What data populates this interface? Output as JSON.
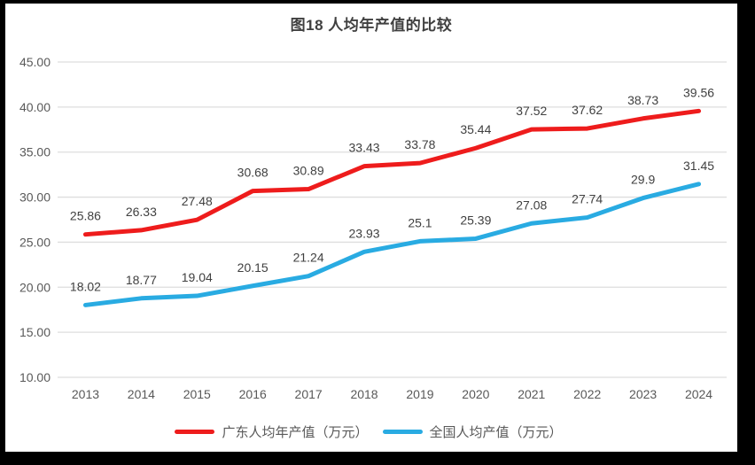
{
  "window": {
    "frame_color": "#000000",
    "canvas_color": "#ffffff"
  },
  "chart_data": {
    "type": "line",
    "title": "图18 人均年产值的比较",
    "categories": [
      "2013",
      "2014",
      "2015",
      "2016",
      "2017",
      "2018",
      "2019",
      "2020",
      "2021",
      "2022",
      "2023",
      "2024"
    ],
    "series": [
      {
        "name": "广东人均年产值（万元）",
        "color": "#ee1c1c",
        "values": [
          25.86,
          26.33,
          27.48,
          30.68,
          30.89,
          33.43,
          33.78,
          35.44,
          37.52,
          37.62,
          38.73,
          39.56
        ]
      },
      {
        "name": "全国人均产值（万元）",
        "color": "#29abe2",
        "values": [
          18.02,
          18.77,
          19.04,
          20.15,
          21.24,
          23.93,
          25.1,
          25.39,
          27.08,
          27.74,
          29.9,
          31.45
        ]
      }
    ],
    "ylim": [
      10,
      45
    ],
    "ytick_values": [
      10,
      15,
      20,
      25,
      30,
      35,
      40,
      45
    ],
    "ytick_labels": [
      "10.00",
      "15.00",
      "20.00",
      "25.00",
      "30.00",
      "35.00",
      "40.00",
      "45.00"
    ],
    "grid": true,
    "data_labels": true,
    "legend_position": "bottom"
  },
  "styles": {
    "grid_color": "#dedede",
    "tick_label_color": "#595959",
    "data_label_color": "#404040",
    "title_color": "#404040",
    "legend_text_color": "#595959"
  }
}
